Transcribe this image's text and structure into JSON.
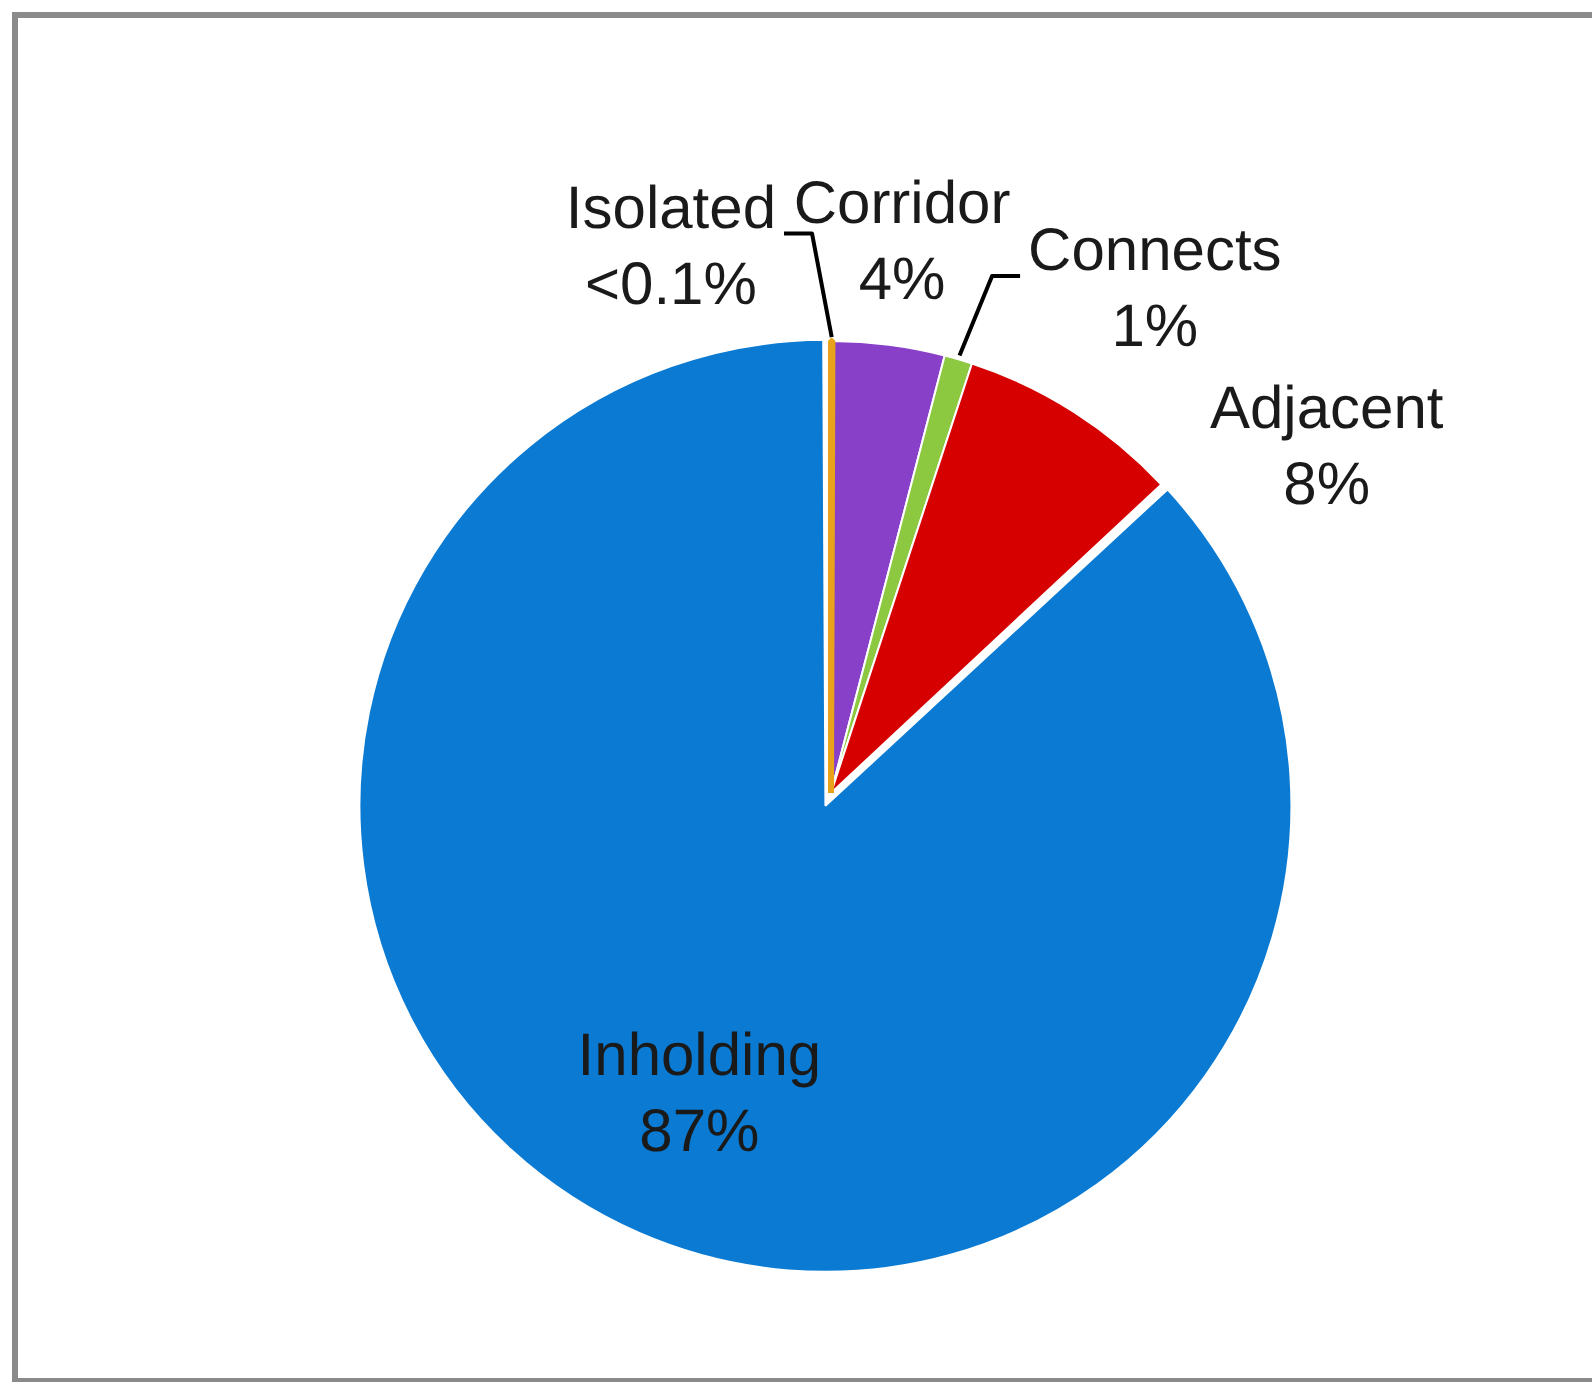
{
  "chart_data": {
    "type": "pie",
    "categories": [
      "Isolated",
      "Corridor",
      "Connects",
      "Adjacent",
      "Inholding"
    ],
    "values": [
      0.05,
      4,
      1,
      8,
      87
    ],
    "value_labels": [
      "<0.1%",
      "4%",
      "1%",
      "8%",
      "87%"
    ],
    "colors": [
      "#e8a31a",
      "#8840c8",
      "#8cc840",
      "#d60000",
      "#0a7ad2"
    ]
  }
}
